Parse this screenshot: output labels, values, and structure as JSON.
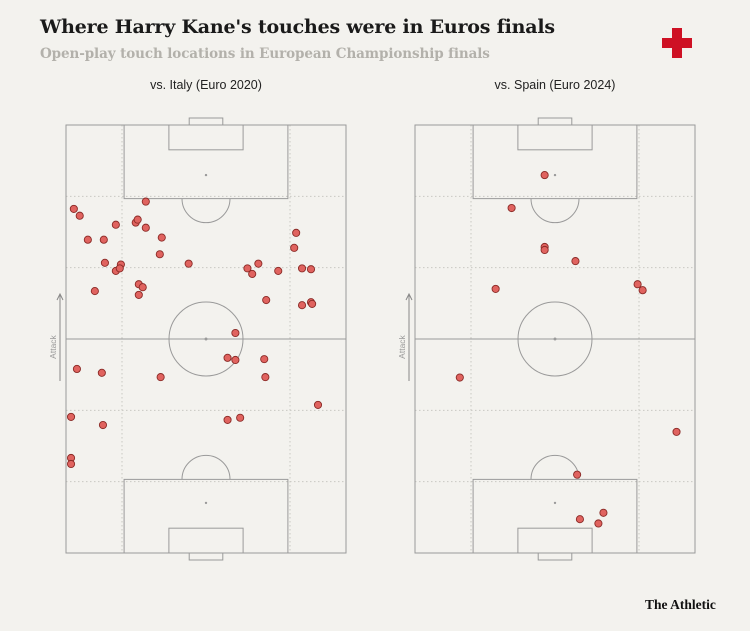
{
  "title": "Where Harry Kane's touches were in Euros finals",
  "subtitle": "Open-play touch locations in European Championship finals",
  "brand": "The Athletic",
  "attack_label": "Attack",
  "colors": {
    "background": "#f3f2ee",
    "dot_fill": "#e0635f",
    "dot_stroke": "#8a2a26",
    "pitch_line": "#9a9a9a",
    "flag_red": "#ce1124"
  },
  "icons": {
    "flag": "england-flag-icon",
    "arrow": "up-arrow-icon"
  },
  "chart_data": [
    {
      "type": "scatter",
      "title": "vs. Italy (Euro 2020)",
      "xlim": [
        0,
        100
      ],
      "ylim": [
        0,
        100
      ],
      "points": [
        {
          "x": 2.8,
          "y": 80.4
        },
        {
          "x": 4.9,
          "y": 78.8
        },
        {
          "x": 7.8,
          "y": 73.2
        },
        {
          "x": 13.5,
          "y": 73.2
        },
        {
          "x": 17.8,
          "y": 76.7
        },
        {
          "x": 24.9,
          "y": 77.2
        },
        {
          "x": 25.6,
          "y": 77.9
        },
        {
          "x": 28.5,
          "y": 76.0
        },
        {
          "x": 28.5,
          "y": 82.1
        },
        {
          "x": 34.2,
          "y": 73.7
        },
        {
          "x": 33.5,
          "y": 69.8
        },
        {
          "x": 13.9,
          "y": 67.8
        },
        {
          "x": 19.6,
          "y": 67.4
        },
        {
          "x": 17.8,
          "y": 65.9
        },
        {
          "x": 19.2,
          "y": 66.5
        },
        {
          "x": 26.0,
          "y": 62.8
        },
        {
          "x": 27.4,
          "y": 62.1
        },
        {
          "x": 26.0,
          "y": 60.3
        },
        {
          "x": 10.3,
          "y": 61.2
        },
        {
          "x": 43.8,
          "y": 67.6
        },
        {
          "x": 64.8,
          "y": 66.5
        },
        {
          "x": 66.5,
          "y": 65.2
        },
        {
          "x": 68.7,
          "y": 67.6
        },
        {
          "x": 75.8,
          "y": 65.9
        },
        {
          "x": 82.2,
          "y": 74.8
        },
        {
          "x": 81.5,
          "y": 71.3
        },
        {
          "x": 84.3,
          "y": 66.5
        },
        {
          "x": 87.5,
          "y": 66.3
        },
        {
          "x": 71.5,
          "y": 59.1
        },
        {
          "x": 84.3,
          "y": 57.9
        },
        {
          "x": 87.5,
          "y": 58.6
        },
        {
          "x": 87.9,
          "y": 58.2
        },
        {
          "x": 60.5,
          "y": 51.4
        },
        {
          "x": 70.8,
          "y": 45.3
        },
        {
          "x": 60.5,
          "y": 45.1
        },
        {
          "x": 57.7,
          "y": 45.6
        },
        {
          "x": 71.2,
          "y": 41.1
        },
        {
          "x": 90.0,
          "y": 34.6
        },
        {
          "x": 3.9,
          "y": 43.0
        },
        {
          "x": 12.8,
          "y": 42.1
        },
        {
          "x": 33.8,
          "y": 41.1
        },
        {
          "x": 1.8,
          "y": 31.8
        },
        {
          "x": 13.2,
          "y": 29.9
        },
        {
          "x": 57.7,
          "y": 31.1
        },
        {
          "x": 62.2,
          "y": 31.6
        },
        {
          "x": 1.8,
          "y": 22.2
        },
        {
          "x": 1.8,
          "y": 20.8
        }
      ]
    },
    {
      "type": "scatter",
      "title": "vs. Spain (Euro 2024)",
      "xlim": [
        0,
        100
      ],
      "ylim": [
        0,
        100
      ],
      "points": [
        {
          "x": 46.3,
          "y": 88.3
        },
        {
          "x": 34.5,
          "y": 80.6
        },
        {
          "x": 46.3,
          "y": 71.5
        },
        {
          "x": 46.3,
          "y": 70.8
        },
        {
          "x": 57.3,
          "y": 68.2
        },
        {
          "x": 28.8,
          "y": 61.7
        },
        {
          "x": 81.3,
          "y": 61.4
        },
        {
          "x": 79.5,
          "y": 62.8
        },
        {
          "x": 16.0,
          "y": 41.0
        },
        {
          "x": 93.4,
          "y": 28.3
        },
        {
          "x": 57.9,
          "y": 18.3
        },
        {
          "x": 67.3,
          "y": 9.4
        },
        {
          "x": 58.9,
          "y": 7.9
        },
        {
          "x": 65.5,
          "y": 6.9
        }
      ]
    }
  ]
}
